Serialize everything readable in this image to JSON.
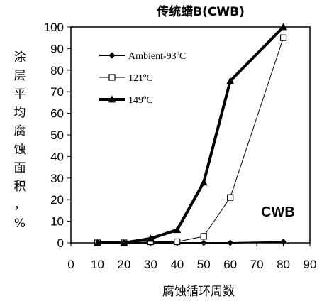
{
  "chart_data": {
    "type": "line",
    "title": "传统蜡B(CWB)",
    "xlabel": "腐蚀循环周数",
    "ylabel": "涂层平均腐蚀面积，%",
    "xlim": [
      0,
      90
    ],
    "ylim": [
      0,
      100
    ],
    "xticks": [
      0,
      10,
      20,
      30,
      40,
      50,
      60,
      70,
      80,
      90
    ],
    "yticks": [
      0,
      10,
      20,
      30,
      40,
      50,
      60,
      70,
      80,
      90,
      100
    ],
    "grid": false,
    "legend_position": "top-left",
    "annotation": "CWB",
    "series": [
      {
        "name": "Ambient-93ºC",
        "marker": "diamond",
        "color": "#000000",
        "x": [
          10,
          20,
          30,
          40,
          50,
          60,
          80
        ],
        "y": [
          0,
          0,
          0,
          0,
          0,
          0,
          0.5
        ]
      },
      {
        "name": "121ºC",
        "marker": "open-square",
        "color": "#000000",
        "x": [
          10,
          20,
          30,
          40,
          50,
          60,
          80
        ],
        "y": [
          0,
          0,
          0.5,
          0.5,
          3,
          21,
          95
        ]
      },
      {
        "name": "149ºC",
        "marker": "triangle",
        "color": "#000000",
        "x": [
          10,
          20,
          30,
          40,
          50,
          60,
          80
        ],
        "y": [
          0,
          0,
          2,
          6,
          28,
          75,
          100
        ]
      }
    ]
  }
}
